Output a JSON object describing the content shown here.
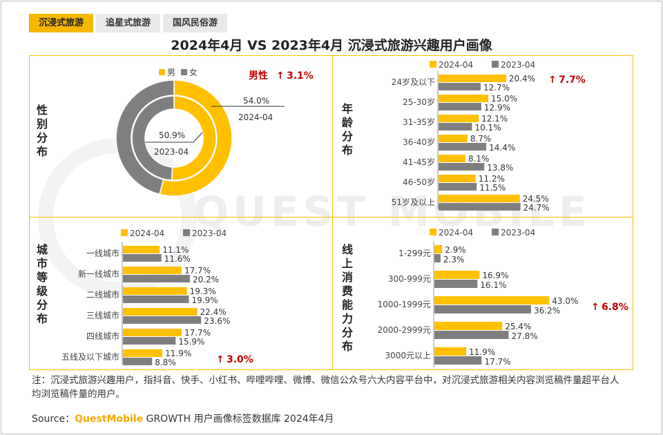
{
  "tabs": [
    "沉浸式旅游",
    "追星式旅游",
    "国风民俗游"
  ],
  "title": "2024年4月 VS 2023年4月 沉浸式旅游兴趣用户画像",
  "watermark": "QUEST MOBILE",
  "colors": {
    "y2024": "#FFC000",
    "y2023": "#7F7F7F",
    "accent": "#C00000",
    "border": "#F5C000"
  },
  "gender": {
    "label": "性别分布",
    "legend": [
      "男",
      "女"
    ],
    "badge": "男性",
    "badge_delta": "3.1%",
    "outer_label": "2024-04",
    "inner_label": "2023-04",
    "outer_value_text": "54.0%",
    "inner_value_text": "50.9%"
  },
  "note": "注：沉浸式旅游兴趣用户，指抖音、快手、小红书、哔哩哔哩、微博、微信公众号六大内容平台中，对沉浸式旅游相关内容浏览稿件量超平台人均浏览稿件量的用户。",
  "source": {
    "prefix": "Source：",
    "brand": "QuestMobile",
    "rest": " GROWTH 用户画像标签数据库 2024年4月"
  },
  "chart_data": [
    {
      "type": "pie",
      "title": "性别分布",
      "series": [
        {
          "name": "2024-04",
          "categories": [
            "男",
            "女"
          ],
          "values": [
            54.0,
            46.0
          ]
        },
        {
          "name": "2023-04",
          "categories": [
            "男",
            "女"
          ],
          "values": [
            50.9,
            49.1
          ]
        }
      ],
      "annotation": "男性 ↑ 3.1%"
    },
    {
      "type": "bar",
      "title": "年龄分布",
      "categories": [
        "24岁及以下",
        "25-30岁",
        "31-35岁",
        "36-40岁",
        "41-45岁",
        "46-50岁",
        "51岁及以上"
      ],
      "series": [
        {
          "name": "2024-04",
          "values": [
            20.4,
            15.0,
            12.1,
            8.7,
            8.1,
            11.2,
            24.5
          ]
        },
        {
          "name": "2023-04",
          "values": [
            12.7,
            12.9,
            10.1,
            14.4,
            13.8,
            11.5,
            24.7
          ]
        }
      ],
      "labels_2024": [
        "20.4%",
        "15.0%",
        "12.1%",
        "8.7%",
        "8.1%",
        "11.2%",
        "24.5%"
      ],
      "labels_2023": [
        "12.7%",
        "12.9%",
        "10.1%",
        "14.4%",
        "13.8%",
        "11.5%",
        "24.7%"
      ],
      "annotation": {
        "index": 0,
        "text": "7.7%"
      },
      "xlim": [
        0,
        25
      ]
    },
    {
      "type": "bar",
      "title": "城市等级分布",
      "categories": [
        "一线城市",
        "新一线城市",
        "二线城市",
        "三线城市",
        "四线城市",
        "五线及以下城市"
      ],
      "series": [
        {
          "name": "2024-04",
          "values": [
            11.1,
            17.7,
            19.3,
            22.4,
            17.7,
            11.9
          ]
        },
        {
          "name": "2023-04",
          "values": [
            11.6,
            20.2,
            19.9,
            23.6,
            15.9,
            8.8
          ]
        }
      ],
      "labels_2024": [
        "11.1%",
        "17.7%",
        "19.3%",
        "22.4%",
        "17.7%",
        "11.9%"
      ],
      "labels_2023": [
        "11.6%",
        "20.2%",
        "19.9%",
        "23.6%",
        "15.9%",
        "8.8%"
      ],
      "annotation": {
        "index": 5,
        "text": "3.0%"
      },
      "xlim": [
        0,
        25
      ]
    },
    {
      "type": "bar",
      "title": "线上消费能力分布",
      "categories": [
        "1-299元",
        "300-999元",
        "1000-1999元",
        "2000-2999元",
        "3000元以上"
      ],
      "series": [
        {
          "name": "2024-04",
          "values": [
            2.9,
            16.9,
            43.0,
            25.4,
            11.9
          ]
        },
        {
          "name": "2023-04",
          "values": [
            2.3,
            16.1,
            36.2,
            27.8,
            17.7
          ]
        }
      ],
      "labels_2024": [
        "2.9%",
        "16.9%",
        "43.0%",
        "25.4%",
        "11.9%"
      ],
      "labels_2023": [
        "2.3%",
        "16.1%",
        "36.2%",
        "27.8%",
        "17.7%"
      ],
      "annotation": {
        "index": 2,
        "text": "6.8%"
      },
      "xlim": [
        0,
        45
      ]
    }
  ]
}
